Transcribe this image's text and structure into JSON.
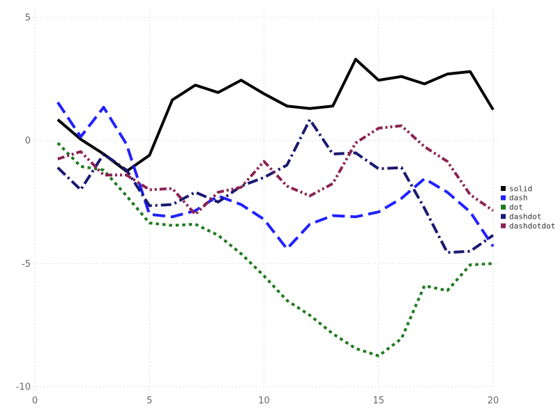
{
  "chart_data": {
    "type": "line",
    "title": "",
    "xlabel": "",
    "ylabel": "",
    "grid": "dotted",
    "legend_position": "right-outside",
    "background_color": "#ffffff",
    "grid_color": "#dcdde5",
    "tick_label_color": "#65656e",
    "legend_text_color": "#333333",
    "xlim": [
      0,
      20.6
    ],
    "ylim": [
      -10.5,
      5.3
    ],
    "xticks": [
      0,
      5,
      10,
      15,
      20
    ],
    "yticks": [
      -10,
      -5,
      0,
      5
    ],
    "x": [
      1,
      2,
      3,
      4,
      5,
      6,
      7,
      8,
      9,
      10,
      11,
      12,
      13,
      14,
      15,
      16,
      17,
      18,
      19,
      20
    ],
    "series": [
      {
        "name": "solid",
        "color": "#000000",
        "dash": "solid",
        "values": [
          0.85,
          0.05,
          -0.55,
          -1.25,
          -0.6,
          1.65,
          2.25,
          1.95,
          2.45,
          1.9,
          1.4,
          1.3,
          1.4,
          3.3,
          2.45,
          2.6,
          2.3,
          2.7,
          2.8,
          1.25
        ]
      },
      {
        "name": "dash",
        "color": "#2020ff",
        "dash": "dash",
        "values": [
          1.55,
          0.15,
          1.35,
          -0.15,
          -3.0,
          -3.1,
          -2.85,
          -2.25,
          -2.6,
          -3.2,
          -4.4,
          -3.4,
          -3.05,
          -3.1,
          -2.9,
          -2.35,
          -1.55,
          -2.1,
          -2.9,
          -4.3
        ]
      },
      {
        "name": "dot",
        "color": "#1f7a1f",
        "dash": "dot",
        "values": [
          -0.1,
          -1.05,
          -1.2,
          -2.25,
          -3.35,
          -3.45,
          -3.4,
          -3.85,
          -4.6,
          -5.5,
          -6.5,
          -7.1,
          -7.85,
          -8.45,
          -8.75,
          -8.05,
          -5.9,
          -6.1,
          -5.05,
          -5.0
        ]
      },
      {
        "name": "dashdot",
        "color": "#191970",
        "dash": "dashdot",
        "values": [
          -1.1,
          -2.0,
          -0.55,
          -1.2,
          -2.65,
          -2.6,
          -2.1,
          -2.5,
          -1.85,
          -1.5,
          -1.0,
          0.85,
          -0.55,
          -0.5,
          -1.15,
          -1.1,
          -2.75,
          -4.55,
          -4.5,
          -3.85
        ]
      },
      {
        "name": "dashdotdot",
        "color": "#8b2352",
        "dash": "dashdotdot",
        "values": [
          -0.75,
          -0.45,
          -1.4,
          -1.4,
          -2.0,
          -1.95,
          -3.0,
          -2.1,
          -1.9,
          -0.85,
          -1.85,
          -2.25,
          -1.75,
          -0.1,
          0.5,
          0.6,
          -0.25,
          -0.85,
          -2.2,
          -2.85
        ]
      }
    ]
  }
}
